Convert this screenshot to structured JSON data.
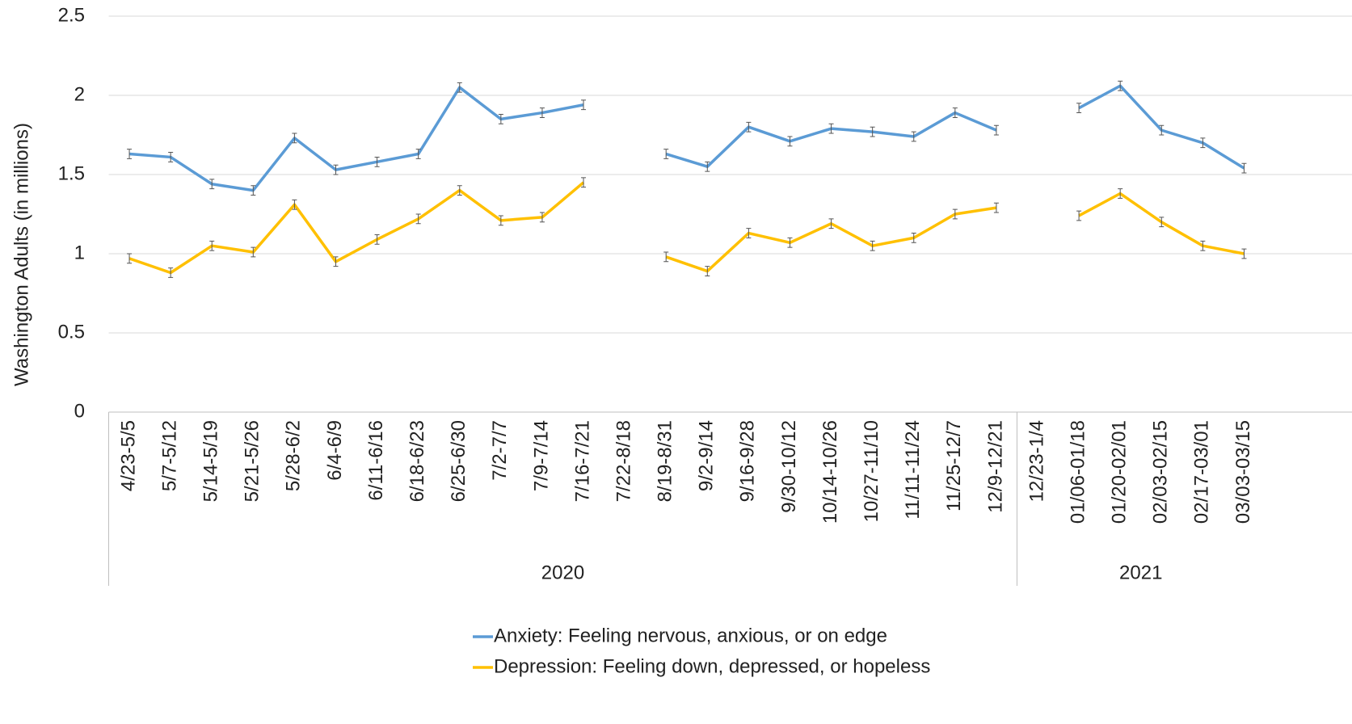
{
  "chart_data": {
    "type": "line",
    "y_label": "Washington Adults (in millions)",
    "groups": [
      {
        "label": "2020",
        "categories": [
          "4/23-5/5",
          "5/7-5/12",
          "5/14-5/19",
          "5/21-5/26",
          "5/28-6/2",
          "6/4-6/9",
          "6/11-6/16",
          "6/18-6/23",
          "6/25-6/30",
          "7/2-7/7",
          "7/9-7/14",
          "7/16-7/21",
          "7/22-8/18",
          "8/19-8/31",
          "9/2-9/14",
          "9/16-9/28",
          "9/30-10/12",
          "10/14-10/26",
          "10/27-11/10",
          "11/11-11/24",
          "11/25-12/7",
          "12/9-12/21"
        ]
      },
      {
        "label": "2021",
        "categories": [
          "12/23-1/4",
          "01/06-01/18",
          "01/20-02/01",
          "02/03-02/15",
          "02/17-03/01",
          "03/03-03/15"
        ]
      }
    ],
    "series": [
      {
        "name": "Anxiety: Feeling nervous, anxious, or on edge",
        "color": "#5b9bd5",
        "values": [
          1.63,
          1.61,
          1.44,
          1.4,
          1.73,
          1.53,
          1.58,
          1.63,
          2.05,
          1.85,
          1.89,
          1.94,
          null,
          1.63,
          1.55,
          1.8,
          1.71,
          1.79,
          1.77,
          1.74,
          1.89,
          1.78,
          null,
          1.92,
          2.06,
          1.78,
          1.7,
          1.54
        ],
        "errors": [
          0.03,
          0.03,
          0.03,
          0.03,
          0.03,
          0.03,
          0.03,
          0.03,
          0.03,
          0.03,
          0.03,
          0.03,
          null,
          0.03,
          0.03,
          0.03,
          0.03,
          0.03,
          0.03,
          0.03,
          0.03,
          0.03,
          null,
          0.03,
          0.03,
          0.03,
          0.03,
          0.03
        ]
      },
      {
        "name": "Depression: Feeling down, depressed, or hopeless",
        "color": "#ffc000",
        "values": [
          0.97,
          0.88,
          1.05,
          1.01,
          1.31,
          0.95,
          1.09,
          1.22,
          1.4,
          1.21,
          1.23,
          1.45,
          null,
          0.98,
          0.89,
          1.13,
          1.07,
          1.19,
          1.05,
          1.1,
          1.25,
          1.29,
          null,
          1.24,
          1.38,
          1.2,
          1.05,
          1.0
        ],
        "errors": [
          0.03,
          0.03,
          0.03,
          0.03,
          0.03,
          0.03,
          0.03,
          0.03,
          0.03,
          0.03,
          0.03,
          0.03,
          null,
          0.03,
          0.03,
          0.03,
          0.03,
          0.03,
          0.03,
          0.03,
          0.03,
          0.03,
          null,
          0.03,
          0.03,
          0.03,
          0.03,
          0.03
        ]
      }
    ],
    "ylim": [
      0,
      2.5
    ],
    "yticks": [
      0,
      0.5,
      1,
      1.5,
      2,
      2.5
    ],
    "grid": true,
    "legend": "bottom"
  }
}
